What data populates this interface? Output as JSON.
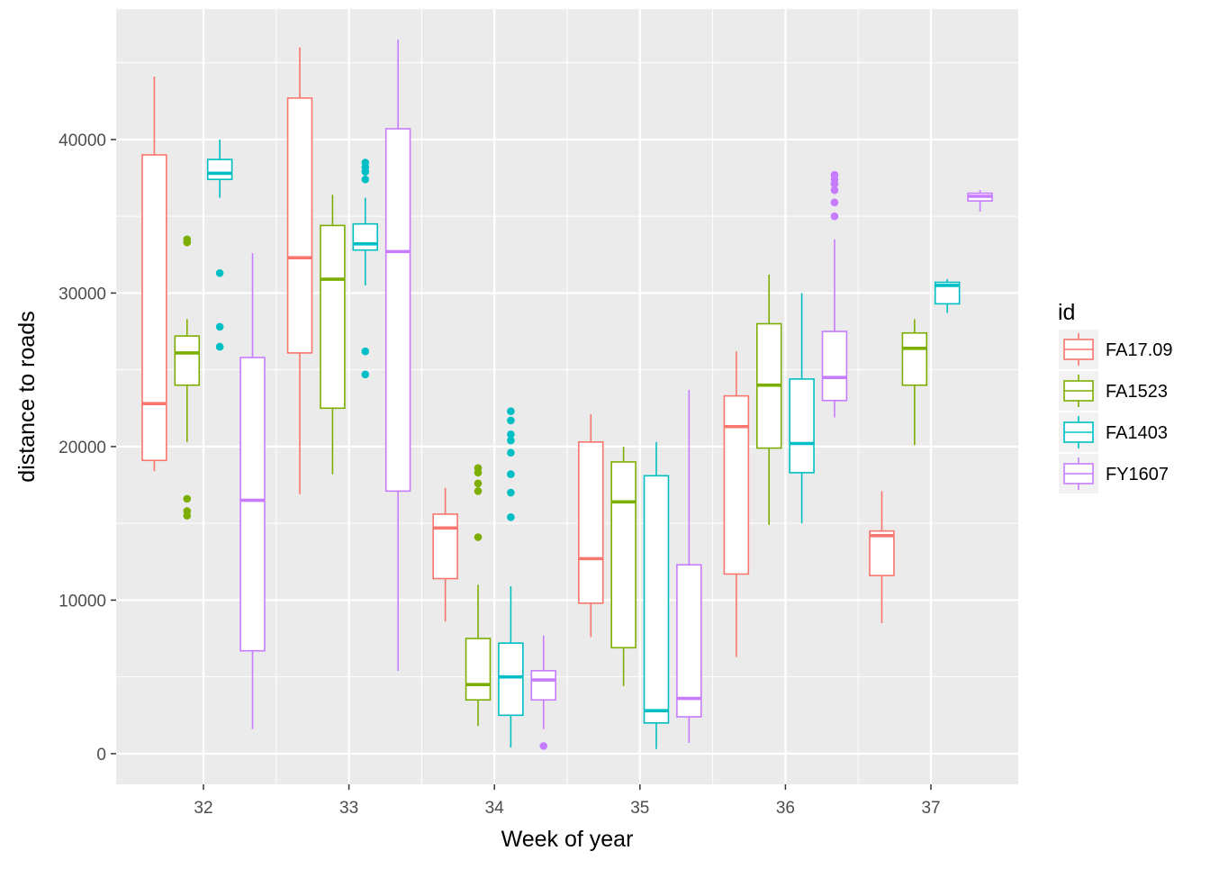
{
  "chart_data": {
    "type": "boxplot",
    "xlabel": "Week of year",
    "ylabel": "distance to roads",
    "categories": [
      "32",
      "33",
      "34",
      "35",
      "36",
      "37"
    ],
    "ylim": [
      -2000,
      48500
    ],
    "yticks": [
      0,
      10000,
      20000,
      30000,
      40000
    ],
    "ytick_labels": [
      "0",
      "10000",
      "20000",
      "30000",
      "40000"
    ],
    "grid": true,
    "legend": {
      "title": "id",
      "position": "right",
      "entries": [
        "FA17.09",
        "FA1523",
        "FA1403",
        "FY1607"
      ]
    },
    "colors": {
      "FA17.09": "#F8766D",
      "FA1523": "#7CAE00",
      "FA1403": "#00BFC4",
      "FY1607": "#C77CFF",
      "panel": "#EBEBEB",
      "grid": "#FFFFFF"
    },
    "series": [
      {
        "name": "FA17.09",
        "boxes": [
          {
            "week": "32",
            "min": 18400,
            "q1": 19100,
            "median": 22800,
            "q3": 39000,
            "max": 44100,
            "outliers": []
          },
          {
            "week": "33",
            "min": 16900,
            "q1": 26100,
            "median": 32300,
            "q3": 42700,
            "max": 46000,
            "outliers": []
          },
          {
            "week": "34",
            "min": 8600,
            "q1": 11400,
            "median": 14700,
            "q3": 15600,
            "max": 17300,
            "outliers": []
          },
          {
            "week": "35",
            "min": 7600,
            "q1": 9800,
            "median": 12700,
            "q3": 20300,
            "max": 22100,
            "outliers": []
          },
          {
            "week": "36",
            "min": 6300,
            "q1": 11700,
            "median": 21300,
            "q3": 23300,
            "max": 26200,
            "outliers": []
          },
          {
            "week": "37",
            "min": 8500,
            "q1": 11600,
            "median": 14200,
            "q3": 14500,
            "max": 17100,
            "outliers": []
          }
        ]
      },
      {
        "name": "FA1523",
        "boxes": [
          {
            "week": "32",
            "min": 20300,
            "q1": 24000,
            "median": 26100,
            "q3": 27200,
            "max": 28300,
            "outliers": [
              33500,
              33300,
              16600,
              15800,
              15500
            ]
          },
          {
            "week": "33",
            "min": 18200,
            "q1": 22500,
            "median": 30900,
            "q3": 34400,
            "max": 36400,
            "outliers": []
          },
          {
            "week": "34",
            "min": 1800,
            "q1": 3500,
            "median": 4500,
            "q3": 7500,
            "max": 11000,
            "outliers": [
              18600,
              18300,
              17600,
              17100,
              14100
            ]
          },
          {
            "week": "35",
            "min": 4400,
            "q1": 6900,
            "median": 16400,
            "q3": 19000,
            "max": 20000,
            "outliers": []
          },
          {
            "week": "36",
            "min": 14900,
            "q1": 19900,
            "median": 24000,
            "q3": 28000,
            "max": 31200,
            "outliers": []
          },
          {
            "week": "37",
            "min": 20100,
            "q1": 24000,
            "median": 26400,
            "q3": 27400,
            "max": 28300,
            "outliers": []
          }
        ]
      },
      {
        "name": "FA1403",
        "boxes": [
          {
            "week": "32",
            "min": 36200,
            "q1": 37400,
            "median": 37800,
            "q3": 38700,
            "max": 40000,
            "outliers": [
              31300,
              27800,
              26500
            ]
          },
          {
            "week": "33",
            "min": 30500,
            "q1": 32800,
            "median": 33200,
            "q3": 34500,
            "max": 36200,
            "outliers": [
              38500,
              38200,
              37900,
              37400,
              26200,
              24700
            ]
          },
          {
            "week": "34",
            "min": 400,
            "q1": 2500,
            "median": 5000,
            "q3": 7200,
            "max": 10900,
            "outliers": [
              22300,
              21700,
              20800,
              20400,
              19600,
              18200,
              17000,
              15400
            ]
          },
          {
            "week": "35",
            "min": 300,
            "q1": 2000,
            "median": 2800,
            "q3": 18100,
            "max": 20300,
            "outliers": []
          },
          {
            "week": "36",
            "min": 15000,
            "q1": 18300,
            "median": 20200,
            "q3": 24400,
            "max": 30000,
            "outliers": []
          },
          {
            "week": "37",
            "min": 28700,
            "q1": 29300,
            "median": 30500,
            "q3": 30700,
            "max": 30900,
            "outliers": []
          }
        ]
      },
      {
        "name": "FY1607",
        "boxes": [
          {
            "week": "32",
            "min": 1600,
            "q1": 6700,
            "median": 16500,
            "q3": 25800,
            "max": 32600,
            "outliers": []
          },
          {
            "week": "33",
            "min": 5400,
            "q1": 17100,
            "median": 32700,
            "q3": 40700,
            "max": 46500,
            "outliers": []
          },
          {
            "week": "34",
            "min": 1600,
            "q1": 3500,
            "median": 4800,
            "q3": 5400,
            "max": 7700,
            "outliers": [
              500
            ]
          },
          {
            "week": "35",
            "min": 700,
            "q1": 2400,
            "median": 3600,
            "q3": 12300,
            "max": 23700,
            "outliers": []
          },
          {
            "week": "36",
            "min": 21900,
            "q1": 23000,
            "median": 24500,
            "q3": 27500,
            "max": 33500,
            "outliers": [
              37700,
              37400,
              37100,
              36700,
              35900,
              35000
            ]
          },
          {
            "week": "37",
            "min": 35300,
            "q1": 36000,
            "median": 36300,
            "q3": 36500,
            "max": 36700,
            "outliers": []
          }
        ]
      }
    ]
  }
}
